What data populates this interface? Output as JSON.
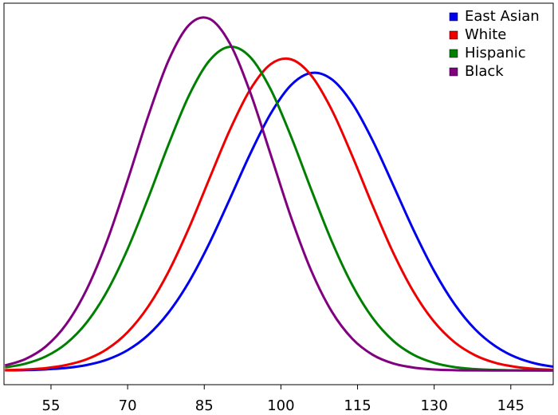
{
  "chart_data": {
    "type": "line",
    "x": [
      46,
      50,
      54,
      58,
      62,
      66,
      70,
      74,
      78,
      82,
      86,
      90,
      94,
      98,
      102,
      106,
      110,
      114,
      118,
      122,
      126,
      130,
      134,
      138,
      142,
      146,
      150,
      154
    ],
    "series": [
      {
        "name": "East Asian",
        "color": "#0000ee",
        "values": [
          0.02,
          0.04,
          0.1,
          0.22,
          0.47,
          0.93,
          1.73,
          3.01,
          4.92,
          7.53,
          10.81,
          14.57,
          18.41,
          21.82,
          24.25,
          25.28,
          24.72,
          22.67,
          19.5,
          15.73,
          11.9,
          8.45,
          5.63,
          3.51,
          2.06,
          1.13,
          0.58,
          0.28
        ]
      },
      {
        "name": "White",
        "color": "#ee0000",
        "values": [
          0.04,
          0.09,
          0.21,
          0.47,
          0.96,
          1.83,
          3.26,
          5.42,
          8.39,
          12.1,
          16.29,
          20.42,
          23.87,
          26.02,
          26.43,
          25.03,
          22.1,
          18.19,
          13.96,
          9.99,
          6.66,
          4.14,
          2.4,
          1.3,
          0.65,
          0.31,
          0.13,
          0.05
        ]
      },
      {
        "name": "Hispanic",
        "color": "#008000",
        "values": [
          0.26,
          0.58,
          1.2,
          2.3,
          4.09,
          6.75,
          10.32,
          14.62,
          19.19,
          23.35,
          26.32,
          27.5,
          26.62,
          23.88,
          19.86,
          15.3,
          10.93,
          7.24,
          4.44,
          2.52,
          1.33,
          0.65,
          0.29,
          0.12,
          0.05,
          0.02,
          0.01,
          0
        ]
      },
      {
        "name": "Black",
        "color": "#800080",
        "values": [
          0.43,
          0.98,
          2.05,
          3.94,
          6.9,
          11.04,
          16.16,
          21.57,
          26.33,
          29.34,
          29.88,
          27.79,
          23.62,
          18.34,
          13.0,
          8.42,
          4.98,
          2.69,
          1.33,
          0.6,
          0.25,
          0.09,
          0.03,
          0.01,
          0,
          0,
          0,
          0
        ]
      }
    ],
    "xlim": [
      45.8,
      153.3
    ],
    "xticks": [
      55,
      70,
      85,
      100,
      115,
      130,
      145
    ],
    "ylim": [
      -1.2,
      31.2
    ],
    "legend": "upper right",
    "grid": false
  }
}
